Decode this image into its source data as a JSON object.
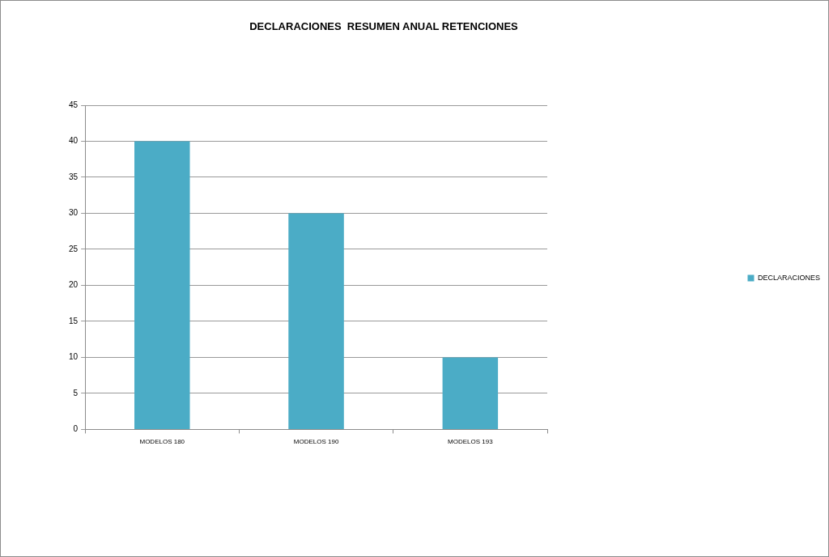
{
  "chart_data": {
    "type": "bar",
    "title": "DECLARACIONES  RESUMEN ANUAL RETENCIONES",
    "categories": [
      "MODELOS 180",
      "MODELOS 190",
      "MODELOS 193"
    ],
    "series": [
      {
        "name": "DECLARACIONES",
        "color": "#4bacc6",
        "values": [
          40,
          30,
          10
        ]
      }
    ],
    "ylim": [
      0,
      45
    ],
    "yticks": [
      0,
      5,
      10,
      15,
      20,
      25,
      30,
      35,
      40,
      45
    ],
    "grid": "y",
    "legend": "right"
  }
}
